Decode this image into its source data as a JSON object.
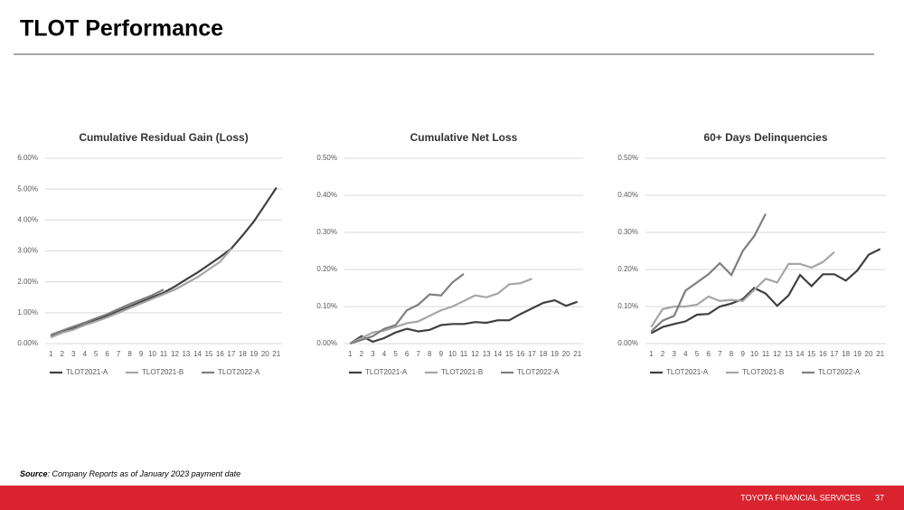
{
  "title": "TLOT Performance",
  "source": {
    "label": "Source",
    "text": ": Company Reports as of January 2023 payment date"
  },
  "footer": {
    "company": "TOYOTA FINANCIAL SERVICES",
    "page": "37"
  },
  "chart_data": [
    {
      "type": "line",
      "title": "Cumulative Residual Gain (Loss)",
      "categories": [
        "1",
        "2",
        "3",
        "4",
        "5",
        "6",
        "7",
        "8",
        "9",
        "10",
        "11",
        "12",
        "13",
        "14",
        "15",
        "16",
        "17",
        "18",
        "19",
        "20",
        "21"
      ],
      "ylim": [
        0,
        6
      ],
      "yticks": [
        {
          "value": 0,
          "label": "0.00%"
        },
        {
          "value": 1,
          "label": "1.00%"
        },
        {
          "value": 2,
          "label": "2.00%"
        },
        {
          "value": 3,
          "label": "3.00%"
        },
        {
          "value": 4,
          "label": "4.00%"
        },
        {
          "value": 5,
          "label": "5.00%"
        },
        {
          "value": 6,
          "label": "6.00%"
        }
      ],
      "grid": true,
      "legend": "bottom",
      "series": [
        {
          "name": "TLOT2021-A",
          "color": "#404040",
          "values": [
            0.25,
            0.38,
            0.5,
            0.63,
            0.77,
            0.9,
            1.05,
            1.2,
            1.35,
            1.5,
            1.65,
            1.85,
            2.08,
            2.3,
            2.55,
            2.8,
            3.08,
            3.5,
            3.95,
            4.5,
            5.05
          ]
        },
        {
          "name": "TLOT2021-B",
          "color": "#a6a6a6",
          "values": [
            0.2,
            0.35,
            0.45,
            0.6,
            0.72,
            0.85,
            1.0,
            1.15,
            1.3,
            1.45,
            1.6,
            1.75,
            1.95,
            2.15,
            2.4,
            2.65,
            3.07,
            null,
            null,
            null,
            null
          ]
        },
        {
          "name": "TLOT2022-A",
          "color": "#7f7f7f",
          "values": [
            0.28,
            0.42,
            0.55,
            0.68,
            0.82,
            0.95,
            1.12,
            1.28,
            1.42,
            1.57,
            1.75,
            null,
            null,
            null,
            null,
            null,
            null,
            null,
            null,
            null,
            null
          ]
        }
      ]
    },
    {
      "type": "line",
      "title": "Cumulative Net Loss",
      "categories": [
        "1",
        "2",
        "3",
        "4",
        "5",
        "6",
        "7",
        "8",
        "9",
        "10",
        "11",
        "12",
        "13",
        "14",
        "15",
        "16",
        "17",
        "18",
        "19",
        "20",
        "21"
      ],
      "ylim": [
        0,
        0.5
      ],
      "yticks": [
        {
          "value": 0,
          "label": "0.00%"
        },
        {
          "value": 0.1,
          "label": "0.10%"
        },
        {
          "value": 0.2,
          "label": "0.20%"
        },
        {
          "value": 0.3,
          "label": "0.30%"
        },
        {
          "value": 0.4,
          "label": "0.40%"
        },
        {
          "value": 0.5,
          "label": "0.50%"
        }
      ],
      "grid": true,
      "legend": "bottom",
      "series": [
        {
          "name": "TLOT2021-A",
          "color": "#404040",
          "values": [
            0,
            0.02,
            0.005,
            0.015,
            0.03,
            0.04,
            0.033,
            0.037,
            0.05,
            0.053,
            0.053,
            0.058,
            0.056,
            0.063,
            0.063,
            0.08,
            0.095,
            0.11,
            0.117,
            0.102,
            0.113
          ]
        },
        {
          "name": "TLOT2021-B",
          "color": "#a6a6a6",
          "values": [
            0,
            0.015,
            0.03,
            0.035,
            0.045,
            0.055,
            0.06,
            0.075,
            0.09,
            0.1,
            0.115,
            0.13,
            0.125,
            0.135,
            0.16,
            0.163,
            0.175,
            null,
            null,
            null,
            null
          ]
        },
        {
          "name": "TLOT2022-A",
          "color": "#7f7f7f",
          "values": [
            0,
            0.01,
            0.02,
            0.04,
            0.05,
            0.09,
            0.105,
            0.133,
            0.13,
            0.165,
            0.188,
            null,
            null,
            null,
            null,
            null,
            null,
            null,
            null,
            null,
            null
          ]
        }
      ]
    },
    {
      "type": "line",
      "title": "60+ Days Delinquencies",
      "categories": [
        "1",
        "2",
        "3",
        "4",
        "5",
        "6",
        "7",
        "8",
        "9",
        "10",
        "11",
        "12",
        "13",
        "14",
        "15",
        "16",
        "17",
        "18",
        "19",
        "20",
        "21"
      ],
      "ylim": [
        0,
        0.5
      ],
      "yticks": [
        {
          "value": 0,
          "label": "0.00%"
        },
        {
          "value": 0.1,
          "label": "0.10%"
        },
        {
          "value": 0.2,
          "label": "0.20%"
        },
        {
          "value": 0.3,
          "label": "0.30%"
        },
        {
          "value": 0.4,
          "label": "0.40%"
        },
        {
          "value": 0.5,
          "label": "0.50%"
        }
      ],
      "grid": true,
      "legend": "bottom",
      "series": [
        {
          "name": "TLOT2021-A",
          "color": "#404040",
          "values": [
            0.028,
            0.045,
            0.053,
            0.06,
            0.078,
            0.08,
            0.1,
            0.108,
            0.12,
            0.15,
            0.135,
            0.102,
            0.13,
            0.185,
            0.155,
            0.187,
            0.187,
            0.17,
            0.197,
            0.24,
            0.255
          ]
        },
        {
          "name": "TLOT2021-B",
          "color": "#a6a6a6",
          "values": [
            0.045,
            0.093,
            0.1,
            0.1,
            0.105,
            0.127,
            0.115,
            0.118,
            0.115,
            0.145,
            0.175,
            0.165,
            0.215,
            0.215,
            0.205,
            0.22,
            0.247,
            null,
            null,
            null,
            null
          ]
        },
        {
          "name": "TLOT2022-A",
          "color": "#7f7f7f",
          "values": [
            0.033,
            0.062,
            0.075,
            0.143,
            0.165,
            0.187,
            0.217,
            0.185,
            0.25,
            0.29,
            0.35,
            null,
            null,
            null,
            null,
            null,
            null,
            null,
            null,
            null,
            null
          ]
        }
      ]
    }
  ]
}
